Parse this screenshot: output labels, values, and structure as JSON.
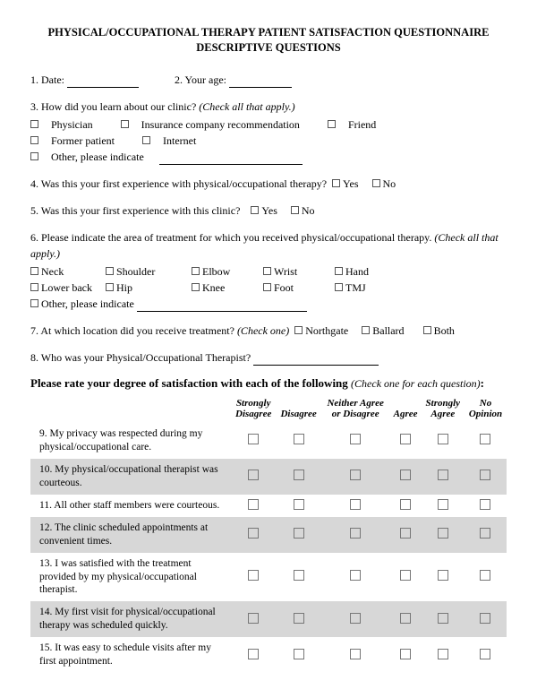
{
  "title_l1": "PHYSICAL/OCCUPATIONAL THERAPY PATIENT SATISFACTION QUESTIONNAIRE",
  "title_l2": "DESCRIPTIVE QUESTIONS",
  "q1_label": "1. Date:",
  "q2_label": "2. Your age:",
  "q3_label": "3. How did you learn about our clinic?",
  "q3_hint": "(Check all that apply.)",
  "q3_opts": [
    "Physician",
    "Insurance company recommendation",
    "Friend",
    "Former patient",
    "Internet"
  ],
  "q3_other": "Other, please indicate",
  "q4_label": "4. Was this your first experience with physical/occupational therapy?",
  "q5_label": "5. Was this your first experience with this clinic?",
  "yes": "Yes",
  "no": "No",
  "q6_label": "6. Please indicate the area of treatment for which you received physical/occupational therapy.",
  "q6_hint": "(Check all that apply.)",
  "q6_row1": [
    "Neck",
    "Shoulder",
    "Elbow",
    "Wrist",
    "Hand"
  ],
  "q6_row2": [
    "Lower back",
    "Hip",
    "Knee",
    "Foot",
    "TMJ"
  ],
  "q6_other": "Other, please indicate",
  "q7_label": "7. At which location did you receive treatment?",
  "q7_hint": "(Check one)",
  "q7_opts": [
    "Northgate",
    "Ballard",
    "Both"
  ],
  "q8_label": "8. Who was your Physical/Occupational Therapist?",
  "section_head": "Please rate your degree of satisfaction with each of the following",
  "section_sub": "(Check one for each question)",
  "section_colon": ":",
  "cols": {
    "c1a": "Strongly",
    "c1b": "Disagree",
    "c2": "Disagree",
    "c3a": "Neither Agree",
    "c3b": "or Disagree",
    "c4": "Agree",
    "c5a": "Strongly",
    "c5b": "Agree",
    "c6a": "No",
    "c6b": "Opinion"
  },
  "rows": [
    {
      "t": "9.  My privacy was respected during my physical/occupational care.",
      "s": false
    },
    {
      "t": "10.  My physical/occupational therapist was courteous.",
      "s": true
    },
    {
      "t": "11.  All other staff members were courteous.",
      "s": false
    },
    {
      "t": "12.  The clinic scheduled appointments at convenient times.",
      "s": true
    },
    {
      "t": "13.  I was satisfied with the treatment provided by my physical/occupational therapist.",
      "s": false
    },
    {
      "t": "14.  My first visit for physical/occupational therapy was scheduled quickly.",
      "s": true
    },
    {
      "t": "15.  It was easy to schedule visits after my first appointment.",
      "s": false
    }
  ]
}
